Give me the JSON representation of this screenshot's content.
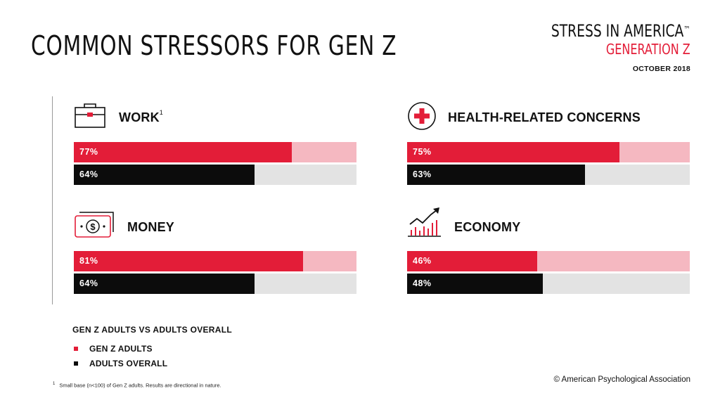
{
  "title": "COMMON STRESSORS FOR GEN Z",
  "brand": {
    "line1": "STRESS IN AMERICA",
    "trademark": "™",
    "line2": "GENERATION Z",
    "date": "OCTOBER 2018"
  },
  "colors": {
    "genz": "#e31d38",
    "genz_track": "#f5b8c1",
    "overall": "#0c0c0c",
    "overall_track": "#e3e3e3",
    "brand_accent": "#e31d38"
  },
  "chart_data": {
    "type": "bar",
    "orientation": "horizontal",
    "xlim": [
      0,
      100
    ],
    "unit": "%",
    "categories": [
      "WORK",
      "HEALTH-RELATED CONCERNS",
      "MONEY",
      "ECONOMY"
    ],
    "series": [
      {
        "name": "GEN Z ADULTS",
        "values": [
          77,
          75,
          81,
          46
        ]
      },
      {
        "name": "ADULTS OVERALL",
        "values": [
          64,
          63,
          64,
          48
        ]
      }
    ],
    "panels": [
      {
        "id": "work",
        "label": "WORK",
        "footnote_mark": "1",
        "icon": "briefcase-icon",
        "genz": 77,
        "overall": 64,
        "genz_label": "77%",
        "overall_label": "64%"
      },
      {
        "id": "health",
        "label": "HEALTH-RELATED CONCERNS",
        "footnote_mark": "",
        "icon": "medical-cross-icon",
        "genz": 75,
        "overall": 63,
        "genz_label": "75%",
        "overall_label": "63%"
      },
      {
        "id": "money",
        "label": "MONEY",
        "footnote_mark": "",
        "icon": "money-bill-icon",
        "genz": 81,
        "overall": 64,
        "genz_label": "81%",
        "overall_label": "64%"
      },
      {
        "id": "economy",
        "label": "ECONOMY",
        "footnote_mark": "",
        "icon": "rising-chart-icon",
        "genz": 46,
        "overall": 48,
        "genz_label": "46%",
        "overall_label": "48%"
      }
    ],
    "legend": {
      "title": "GEN Z ADULTS VS ADULTS OVERALL",
      "items": [
        "GEN Z ADULTS",
        "ADULTS OVERALL"
      ],
      "placement": "bottom-left"
    }
  },
  "footnote": {
    "mark": "1",
    "text": "Small base (n<100) of Gen Z adults. Results are directional in nature."
  },
  "copyright": "© American Psychological Association"
}
